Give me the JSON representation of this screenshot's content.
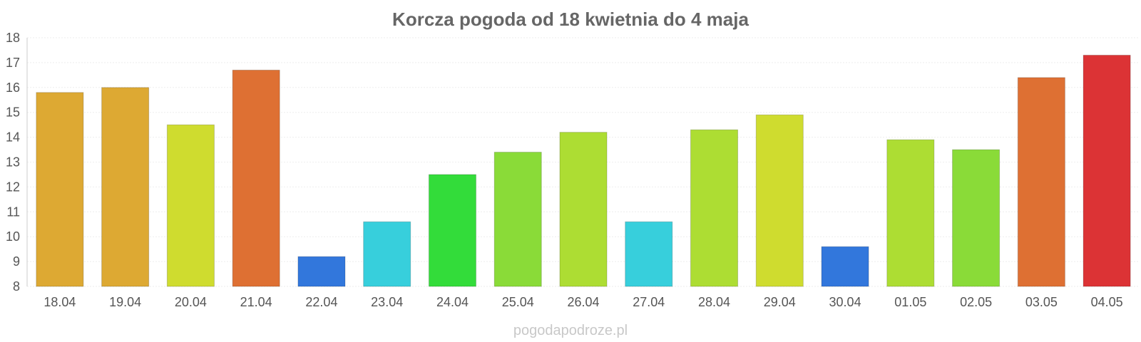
{
  "chart_data": {
    "type": "bar",
    "title": "Korcza pogoda od 18 kwietnia do 4 maja",
    "xlabel": "",
    "ylabel": "",
    "categories": [
      "18.04",
      "19.04",
      "20.04",
      "21.04",
      "22.04",
      "23.04",
      "24.04",
      "25.04",
      "26.04",
      "27.04",
      "28.04",
      "29.04",
      "30.04",
      "01.05",
      "02.05",
      "03.05",
      "04.05"
    ],
    "values": [
      15.8,
      16.0,
      14.5,
      16.7,
      9.2,
      10.6,
      12.5,
      13.4,
      14.2,
      10.6,
      14.3,
      14.9,
      9.6,
      13.9,
      13.5,
      16.4,
      17.3
    ],
    "colors": [
      "#dda933",
      "#dda933",
      "#cfdc2f",
      "#de7033",
      "#3277dc",
      "#37cfdc",
      "#33dc3a",
      "#8adb38",
      "#addd33",
      "#37cfdc",
      "#addd33",
      "#cfdc2f",
      "#3277dc",
      "#addd33",
      "#8adb38",
      "#de7033",
      "#dc3335"
    ],
    "ylim": [
      8,
      18
    ],
    "yticks": [
      8,
      9,
      10,
      11,
      12,
      13,
      14,
      15,
      16,
      17,
      18
    ],
    "grid": true,
    "legend": "none"
  },
  "watermark": "pogodapodroze.pl"
}
